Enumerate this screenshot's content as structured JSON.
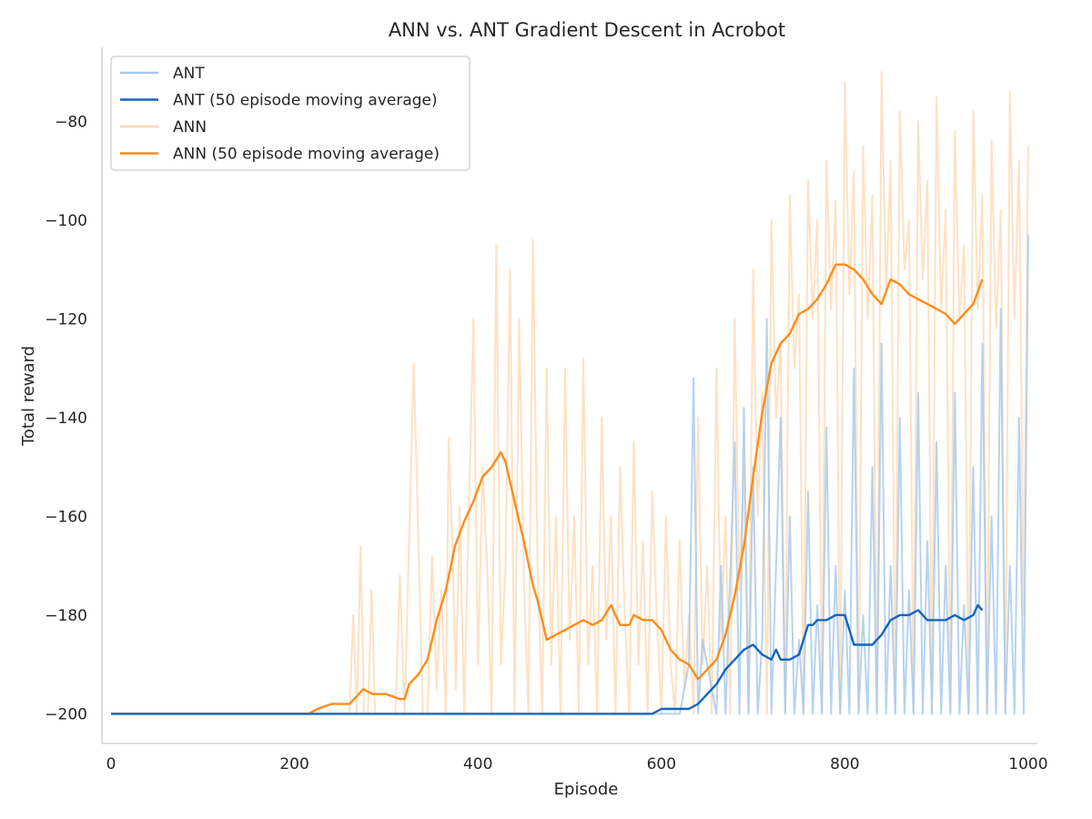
{
  "chart_data": {
    "type": "line",
    "title": "ANN vs. ANT Gradient Descent in Acrobot",
    "xlabel": "Episode",
    "ylabel": "Total reward",
    "xlim": [
      -10,
      1010
    ],
    "ylim": [
      -206,
      -65
    ],
    "xticks": [
      0,
      200,
      400,
      600,
      800,
      1000
    ],
    "yticks": [
      -200,
      -180,
      -160,
      -140,
      -120,
      -100,
      -80
    ],
    "xtick_labels": [
      "0",
      "200",
      "400",
      "600",
      "800",
      "1000"
    ],
    "ytick_labels": [
      "−200",
      "−180",
      "−160",
      "−140",
      "−120",
      "−100",
      "−80"
    ],
    "grid": false,
    "legend_position": "upper left",
    "legend": [
      {
        "label": "ANT",
        "color": "#a4c8ec",
        "series": "ANT"
      },
      {
        "label": "ANT (50 episode moving average)",
        "color": "#1565c0",
        "series": "ANT (50 episode moving average)"
      },
      {
        "label": "ANN",
        "color": "#fdd7b0",
        "series": "ANN"
      },
      {
        "label": "ANN (50 episode moving average)",
        "color": "#ff8c1a",
        "series": "ANN (50 episode moving average)"
      }
    ],
    "series": [
      {
        "name": "ANN",
        "color": "#fdd7b0",
        "opacity": 0.75,
        "stroke": 2,
        "x": [
          0,
          260,
          264,
          268,
          272,
          276,
          280,
          284,
          288,
          300,
          310,
          315,
          320,
          330,
          340,
          345,
          350,
          355,
          360,
          365,
          368,
          372,
          376,
          380,
          385,
          390,
          395,
          400,
          405,
          410,
          415,
          420,
          425,
          430,
          435,
          440,
          445,
          450,
          455,
          460,
          465,
          470,
          475,
          480,
          485,
          490,
          495,
          500,
          505,
          510,
          515,
          520,
          525,
          530,
          535,
          540,
          545,
          550,
          555,
          560,
          565,
          570,
          575,
          580,
          585,
          590,
          595,
          600,
          605,
          610,
          615,
          620,
          625,
          630,
          635,
          640,
          645,
          650,
          655,
          660,
          665,
          670,
          675,
          680,
          685,
          690,
          695,
          700,
          705,
          710,
          715,
          720,
          725,
          730,
          735,
          740,
          745,
          750,
          755,
          760,
          765,
          770,
          775,
          780,
          785,
          790,
          795,
          800,
          805,
          810,
          815,
          820,
          825,
          830,
          835,
          840,
          845,
          850,
          855,
          860,
          865,
          870,
          875,
          880,
          885,
          890,
          895,
          900,
          905,
          910,
          915,
          920,
          925,
          930,
          935,
          940,
          945,
          950,
          955,
          960,
          965,
          970,
          975,
          980,
          985,
          990,
          995,
          1000
        ],
        "values": [
          -200,
          -200,
          -180,
          -200,
          -166,
          -200,
          -200,
          -175,
          -200,
          -200,
          -200,
          -172,
          -200,
          -129,
          -200,
          -200,
          -168,
          -195,
          -175,
          -200,
          -144,
          -165,
          -195,
          -158,
          -200,
          -160,
          -120,
          -190,
          -150,
          -170,
          -200,
          -105,
          -190,
          -170,
          -110,
          -200,
          -120,
          -172,
          -200,
          -104,
          -170,
          -200,
          -130,
          -190,
          -160,
          -200,
          -130,
          -185,
          -160,
          -200,
          -128,
          -190,
          -170,
          -200,
          -140,
          -185,
          -160,
          -200,
          -150,
          -180,
          -200,
          -145,
          -190,
          -165,
          -200,
          -155,
          -180,
          -200,
          -160,
          -190,
          -200,
          -165,
          -195,
          -180,
          -200,
          -140,
          -190,
          -170,
          -200,
          -130,
          -185,
          -160,
          -200,
          -120,
          -175,
          -150,
          -200,
          -110,
          -160,
          -135,
          -200,
          -100,
          -140,
          -125,
          -200,
          -95,
          -130,
          -115,
          -200,
          -92,
          -120,
          -100,
          -200,
          -88,
          -118,
          -96,
          -200,
          -72,
          -115,
          -90,
          -200,
          -85,
          -120,
          -95,
          -200,
          -70,
          -115,
          -88,
          -200,
          -78,
          -110,
          -100,
          -200,
          -80,
          -112,
          -92,
          -200,
          -75,
          -118,
          -98,
          -200,
          -82,
          -120,
          -105,
          -200,
          -78,
          -118,
          -95,
          -200,
          -84,
          -122,
          -98,
          -200,
          -74,
          -120,
          -88,
          -180,
          -85
        ]
      },
      {
        "name": "ANT",
        "color": "#a4c8ec",
        "opacity": 0.8,
        "stroke": 2,
        "x": [
          0,
          620,
          630,
          635,
          640,
          645,
          660,
          665,
          670,
          680,
          685,
          690,
          695,
          700,
          705,
          710,
          715,
          720,
          725,
          730,
          735,
          740,
          745,
          750,
          755,
          760,
          765,
          770,
          775,
          780,
          785,
          790,
          795,
          800,
          805,
          810,
          815,
          820,
          825,
          830,
          835,
          840,
          845,
          850,
          855,
          860,
          865,
          870,
          875,
          880,
          885,
          890,
          895,
          900,
          905,
          910,
          915,
          920,
          925,
          930,
          935,
          940,
          945,
          950,
          955,
          960,
          965,
          970,
          975,
          980,
          985,
          990,
          995,
          1000
        ],
        "values": [
          -200,
          -200,
          -190,
          -132,
          -200,
          -185,
          -200,
          -170,
          -200,
          -145,
          -200,
          -138,
          -200,
          -150,
          -200,
          -185,
          -120,
          -200,
          -170,
          -140,
          -200,
          -160,
          -200,
          -185,
          -200,
          -155,
          -200,
          -178,
          -200,
          -142,
          -200,
          -170,
          -200,
          -175,
          -200,
          -130,
          -200,
          -180,
          -200,
          -150,
          -200,
          -125,
          -200,
          -170,
          -200,
          -140,
          -200,
          -175,
          -200,
          -135,
          -200,
          -165,
          -200,
          -145,
          -200,
          -170,
          -200,
          -135,
          -200,
          -178,
          -200,
          -150,
          -200,
          -125,
          -200,
          -160,
          -200,
          -118,
          -200,
          -170,
          -200,
          -140,
          -200,
          -103
        ]
      },
      {
        "name": "ANN (50 episode moving average)",
        "color": "#ff8c1a",
        "opacity": 1,
        "stroke": 2.4,
        "x": [
          0,
          215,
          225,
          240,
          260,
          270,
          275,
          285,
          300,
          315,
          320,
          325,
          335,
          345,
          355,
          365,
          375,
          385,
          395,
          405,
          415,
          425,
          430,
          440,
          450,
          460,
          465,
          475,
          485,
          495,
          505,
          515,
          525,
          535,
          545,
          555,
          565,
          570,
          580,
          590,
          600,
          610,
          620,
          630,
          640,
          650,
          660,
          670,
          680,
          690,
          700,
          710,
          720,
          730,
          740,
          750,
          760,
          770,
          780,
          790,
          800,
          810,
          820,
          830,
          840,
          850,
          860,
          870,
          880,
          890,
          900,
          910,
          920,
          930,
          940,
          950
        ],
        "values": [
          -200,
          -200,
          -199,
          -198,
          -198,
          -196,
          -195,
          -196,
          -196,
          -197,
          -197,
          -194,
          -192,
          -189,
          -181,
          -175,
          -166,
          -161,
          -157,
          -152,
          -150,
          -147,
          -149,
          -157,
          -165,
          -174,
          -177,
          -185,
          -184,
          -183,
          -182,
          -181,
          -182,
          -181,
          -178,
          -182,
          -182,
          -180,
          -181,
          -181,
          -183,
          -187,
          -189,
          -190,
          -193,
          -191,
          -189,
          -184,
          -176,
          -166,
          -152,
          -139,
          -129,
          -125,
          -123,
          -119,
          -118,
          -116,
          -113,
          -109,
          -109,
          -110,
          -112,
          -115,
          -117,
          -112,
          -113,
          -115,
          -116,
          -117,
          -118,
          -119,
          -121,
          -119,
          -117,
          -112
        ]
      },
      {
        "name": "ANT (50 episode moving average)",
        "color": "#1565c0",
        "opacity": 1,
        "stroke": 2.4,
        "x": [
          0,
          590,
          600,
          610,
          620,
          630,
          640,
          650,
          660,
          670,
          680,
          690,
          700,
          710,
          720,
          725,
          730,
          740,
          750,
          760,
          765,
          770,
          780,
          790,
          800,
          805,
          810,
          820,
          825,
          830,
          840,
          850,
          860,
          870,
          880,
          890,
          900,
          910,
          920,
          930,
          940,
          945,
          950
        ],
        "values": [
          -200,
          -200,
          -199,
          -199,
          -199,
          -199,
          -198,
          -196,
          -194,
          -191,
          -189,
          -187,
          -186,
          -188,
          -189,
          -187,
          -189,
          -189,
          -188,
          -182,
          -182,
          -181,
          -181,
          -180,
          -180,
          -183,
          -186,
          -186,
          -186,
          -186,
          -184,
          -181,
          -180,
          -180,
          -179,
          -181,
          -181,
          -181,
          -180,
          -181,
          -180,
          -178,
          -179
        ]
      }
    ]
  }
}
